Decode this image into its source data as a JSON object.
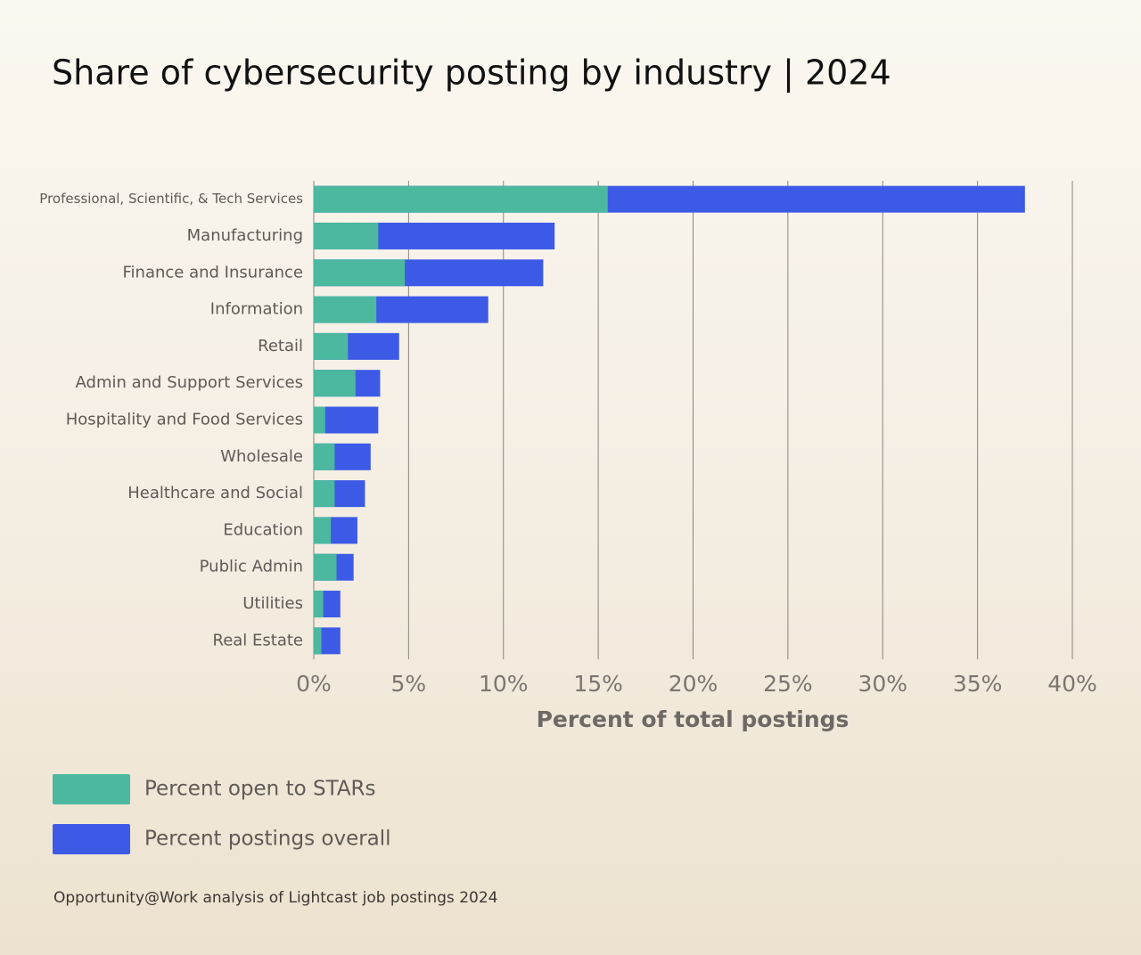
{
  "chart_data": {
    "type": "bar",
    "orientation": "horizontal",
    "barmode": "overlay",
    "title": "Share of cybersecurity posting by industry | 2024",
    "xlabel": "Percent of total postings",
    "source": "Opportunity@Work analysis of Lightcast job postings 2024",
    "categories": [
      "Professional, Scientific, & Tech Services",
      "Manufacturing",
      "Finance and Insurance",
      "Information",
      "Retail",
      "Admin and Support Services",
      "Hospitality and Food Services",
      "Wholesale",
      "Healthcare and Social",
      "Education",
      "Public Admin",
      "Utilities",
      "Real Estate"
    ],
    "series": [
      {
        "name": "Percent open to STARs",
        "color": "#4bb89f",
        "values": [
          15.5,
          3.4,
          4.8,
          3.3,
          1.8,
          2.2,
          0.6,
          1.1,
          1.1,
          0.9,
          1.2,
          0.5,
          0.4
        ]
      },
      {
        "name": "Percent postings overall",
        "color": "#3d5ae6",
        "values": [
          37.5,
          12.7,
          12.1,
          9.2,
          4.5,
          3.5,
          3.4,
          3.0,
          2.7,
          2.3,
          2.1,
          1.4,
          1.4
        ]
      }
    ],
    "xlim": [
      0,
      40
    ],
    "xticks": [
      {
        "value": 0,
        "label": "0%"
      },
      {
        "value": 5,
        "label": "5%"
      },
      {
        "value": 10,
        "label": "10%"
      },
      {
        "value": 15,
        "label": "15%"
      },
      {
        "value": 20,
        "label": "20%"
      },
      {
        "value": 25,
        "label": "25%"
      },
      {
        "value": 30,
        "label": "30%"
      },
      {
        "value": 35,
        "label": "35%"
      },
      {
        "value": 40,
        "label": "40%"
      }
    ],
    "grid": true
  }
}
